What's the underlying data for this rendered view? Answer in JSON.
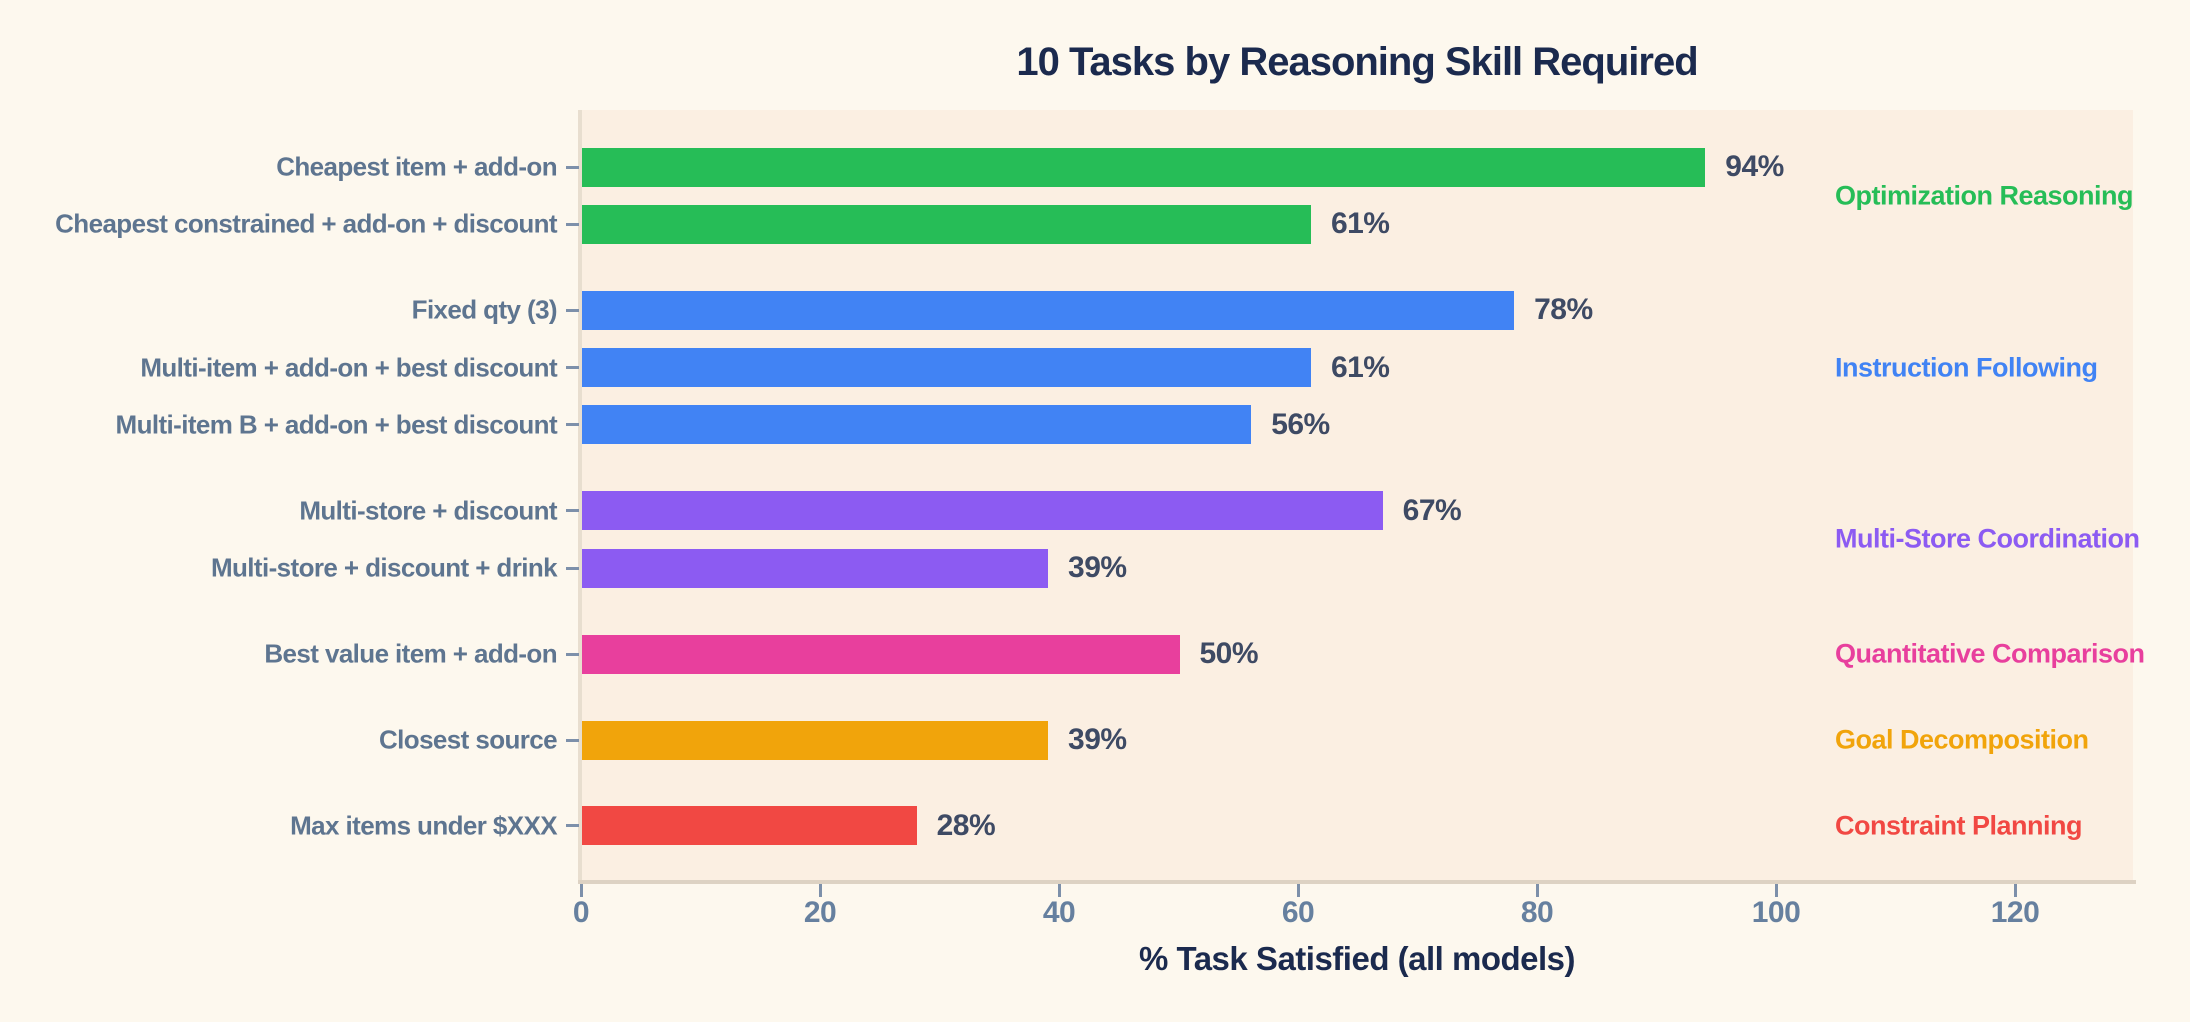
{
  "chart_data": {
    "type": "bar",
    "orientation": "horizontal",
    "title": "10 Tasks by Reasoning Skill Required",
    "xlabel": "% Task Satisfied (all models)",
    "xlim": [
      0,
      129
    ],
    "xticks": [
      "0",
      "20",
      "40",
      "60",
      "80",
      "100",
      "120"
    ],
    "grid": false,
    "legend_position": "right-inline-group-labels",
    "groups": [
      {
        "name": "Optimization Reasoning",
        "color": "#26bd57"
      },
      {
        "name": "Instruction Following",
        "color": "#4183f4"
      },
      {
        "name": "Multi-Store Coordination",
        "color": "#8c5bf2"
      },
      {
        "name": "Quantitative Comparison",
        "color": "#e83f9d"
      },
      {
        "name": "Goal Decomposition",
        "color": "#f1a40b"
      },
      {
        "name": "Constraint Planning",
        "color": "#f14843"
      }
    ],
    "bars": [
      {
        "label": "Cheapest item + add-on",
        "value": 94,
        "value_label": "94%",
        "group": 0
      },
      {
        "label": "Cheapest constrained + add-on + discount",
        "value": 61,
        "value_label": "61%",
        "group": 0
      },
      {
        "label": "Fixed qty (3)",
        "value": 78,
        "value_label": "78%",
        "group": 1
      },
      {
        "label": "Multi-item + add-on + best discount",
        "value": 61,
        "value_label": "61%",
        "group": 1
      },
      {
        "label": "Multi-item B + add-on + best discount",
        "value": 56,
        "value_label": "56%",
        "group": 1
      },
      {
        "label": "Multi-store + discount",
        "value": 67,
        "value_label": "67%",
        "group": 2
      },
      {
        "label": "Multi-store + discount + drink",
        "value": 39,
        "value_label": "39%",
        "group": 2
      },
      {
        "label": "Best value item + add-on",
        "value": 50,
        "value_label": "50%",
        "group": 3
      },
      {
        "label": "Closest source",
        "value": 39,
        "value_label": "39%",
        "group": 4
      },
      {
        "label": "Max items under $XXX",
        "value": 28,
        "value_label": "28%",
        "group": 5
      }
    ],
    "colors": {
      "background": "#fdf8ee",
      "plot_background": "#fbefe2",
      "title": "#1b2a4e",
      "axis_label": "#1b2a4e",
      "value_label": "#3e4a64",
      "category_label": "#5e7590",
      "tick_label": "#66809f",
      "spine": "#e8decf",
      "axis_line": "#ddd2c3",
      "tick_mark": "#7d90aa"
    }
  }
}
